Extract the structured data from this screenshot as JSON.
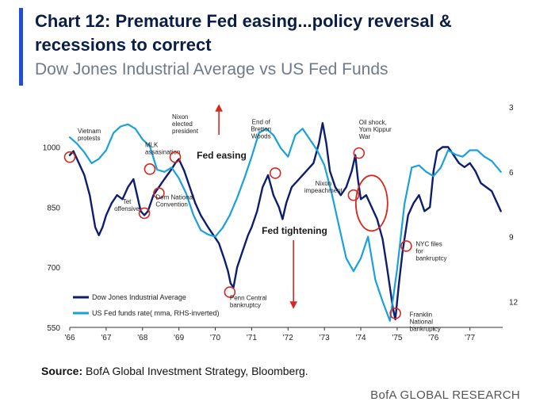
{
  "header": {
    "title": "Chart 12: Premature Fed easing...policy reversal & recessions to correct",
    "subtitle": "Dow Jones Industrial Average vs US Fed Funds"
  },
  "colors": {
    "accent": "#1f4fd8",
    "dow_series": "#0e1e6e",
    "fed_series": "#1aa0dc",
    "annotation": "#d6281f",
    "title": "#0b1f45"
  },
  "chart_data": {
    "type": "line",
    "x_ticks": [
      "'66",
      "'67",
      "'68",
      "'69",
      "'70",
      "'71",
      "'72",
      "'73",
      "'74",
      "'75",
      "'76",
      "'77"
    ],
    "x_range": [
      1966.0,
      1977.9
    ],
    "y_left": {
      "label": "Dow Jones Industrial Average",
      "range": [
        550,
        1100
      ],
      "ticks": [
        "550",
        "700",
        "850",
        "1000"
      ]
    },
    "y_right": {
      "label": "US Fed funds rate (mma, RHS-inverted)",
      "range": [
        3,
        13.2
      ],
      "inverted": true,
      "ticks": [
        "3",
        "6",
        "9",
        "12"
      ]
    },
    "series": [
      {
        "name": "Dow Jones Industrial Average",
        "axis": "left",
        "x": [
          1966.0,
          1966.1,
          1966.25,
          1966.4,
          1966.55,
          1966.7,
          1966.8,
          1966.9,
          1967.0,
          1967.15,
          1967.3,
          1967.45,
          1967.6,
          1967.75,
          1967.85,
          1967.95,
          1968.05,
          1968.15,
          1968.3,
          1968.45,
          1968.6,
          1968.8,
          1968.9,
          1969.0,
          1969.15,
          1969.3,
          1969.45,
          1969.6,
          1969.8,
          1969.95,
          1970.1,
          1970.25,
          1970.35,
          1970.42,
          1970.5,
          1970.6,
          1970.75,
          1970.9,
          1971.0,
          1971.15,
          1971.3,
          1971.45,
          1971.6,
          1971.75,
          1971.85,
          1971.95,
          1972.1,
          1972.3,
          1972.5,
          1972.7,
          1972.85,
          1972.95,
          1973.05,
          1973.15,
          1973.3,
          1973.45,
          1973.6,
          1973.75,
          1973.85,
          1973.92,
          1974.0,
          1974.15,
          1974.3,
          1974.45,
          1974.6,
          1974.72,
          1974.8,
          1974.88,
          1974.95,
          1975.05,
          1975.15,
          1975.3,
          1975.45,
          1975.6,
          1975.75,
          1975.9,
          1976.0,
          1976.1,
          1976.25,
          1976.4,
          1976.55,
          1976.7,
          1976.85,
          1977.0,
          1977.15,
          1977.3,
          1977.45,
          1977.6,
          1977.75,
          1977.85
        ],
        "y": [
          980,
          990,
          960,
          930,
          880,
          800,
          780,
          800,
          830,
          860,
          880,
          870,
          900,
          920,
          880,
          840,
          830,
          840,
          880,
          900,
          920,
          945,
          960,
          970,
          940,
          900,
          860,
          830,
          800,
          780,
          760,
          720,
          690,
          660,
          650,
          700,
          740,
          780,
          800,
          840,
          900,
          930,
          880,
          850,
          820,
          860,
          900,
          920,
          940,
          960,
          1010,
          1060,
          1010,
          940,
          900,
          880,
          900,
          940,
          980,
          920,
          870,
          880,
          850,
          820,
          770,
          700,
          650,
          600,
          570,
          660,
          740,
          830,
          860,
          880,
          840,
          850,
          940,
          990,
          1000,
          1000,
          980,
          960,
          950,
          960,
          940,
          910,
          900,
          890,
          860,
          840
        ]
      },
      {
        "name": "US Fed funds rate (mma, RHS-inverted)",
        "axis": "right",
        "x": [
          1966.0,
          1966.2,
          1966.4,
          1966.6,
          1966.8,
          1967.0,
          1967.2,
          1967.4,
          1967.6,
          1967.8,
          1968.0,
          1968.2,
          1968.4,
          1968.6,
          1968.8,
          1969.0,
          1969.2,
          1969.4,
          1969.6,
          1969.8,
          1970.0,
          1970.2,
          1970.4,
          1970.6,
          1970.8,
          1971.0,
          1971.2,
          1971.4,
          1971.6,
          1971.8,
          1972.0,
          1972.2,
          1972.4,
          1972.6,
          1972.8,
          1973.0,
          1973.2,
          1973.4,
          1973.6,
          1973.8,
          1974.0,
          1974.2,
          1974.4,
          1974.6,
          1974.8,
          1975.0,
          1975.2,
          1975.4,
          1975.6,
          1975.8,
          1976.0,
          1976.2,
          1976.4,
          1976.6,
          1976.8,
          1977.0,
          1977.2,
          1977.4,
          1977.6,
          1977.85
        ],
        "y": [
          4.4,
          4.7,
          5.1,
          5.6,
          5.4,
          5.0,
          4.2,
          3.9,
          3.8,
          4.0,
          4.5,
          4.8,
          5.9,
          6.0,
          5.8,
          6.3,
          7.0,
          8.0,
          8.7,
          8.9,
          9.0,
          8.6,
          8.0,
          7.2,
          6.3,
          5.3,
          4.2,
          4.0,
          4.3,
          4.9,
          5.3,
          4.3,
          4.0,
          4.5,
          5.0,
          5.7,
          7.0,
          8.5,
          10.0,
          10.6,
          10.0,
          9.0,
          11.0,
          12.0,
          12.9,
          10.5,
          7.5,
          5.8,
          5.7,
          6.0,
          6.2,
          5.8,
          5.0,
          5.2,
          5.3,
          5.0,
          5.0,
          5.3,
          5.5,
          6.0
        ]
      }
    ],
    "legend": [
      {
        "label": "Dow Jones Industrial Average",
        "series": 0
      },
      {
        "label": "US Fed funds rate( mma, RHS-inverted)",
        "series": 1
      }
    ],
    "annotations": [
      {
        "text": "Vietnam protests",
        "x": 1966.0,
        "y": 975
      },
      {
        "text": "MLK assasination",
        "x": 1968.2,
        "y": 945
      },
      {
        "text": "Nixon elected president",
        "x": 1968.9,
        "y": 975
      },
      {
        "text": "Tet offensive",
        "x": 1968.05,
        "y": 835
      },
      {
        "text": "Dem National Convention",
        "x": 1968.45,
        "y": 885
      },
      {
        "text": "Penn Central bankruptcy",
        "x": 1970.4,
        "y": 638
      },
      {
        "text": "End of Bretton Woods",
        "x": 1971.65,
        "y": 935
      },
      {
        "text": "Nixon impeachment",
        "x": 1973.8,
        "y": 880
      },
      {
        "text": "Oil shock, Yom Kippur War",
        "x": 1973.95,
        "y": 985
      },
      {
        "text": "NYC files for bankruptcy",
        "x": 1975.25,
        "y": 753
      },
      {
        "text": "Franklin National bankruptcy",
        "x": 1974.95,
        "y": 585
      }
    ],
    "regions": [
      {
        "text": "Fed easing",
        "x": 1970.1,
        "arrow": "up"
      },
      {
        "text": "Fed tightening",
        "x": 1972.15,
        "arrow": "down"
      }
    ],
    "big_circle": {
      "x": 1974.3,
      "y": 860
    }
  },
  "footer": {
    "source_label": "Source:",
    "source_text": " BofA Global Investment Strategy, Bloomberg.",
    "brand": "BofA GLOBAL RESEARCH"
  }
}
